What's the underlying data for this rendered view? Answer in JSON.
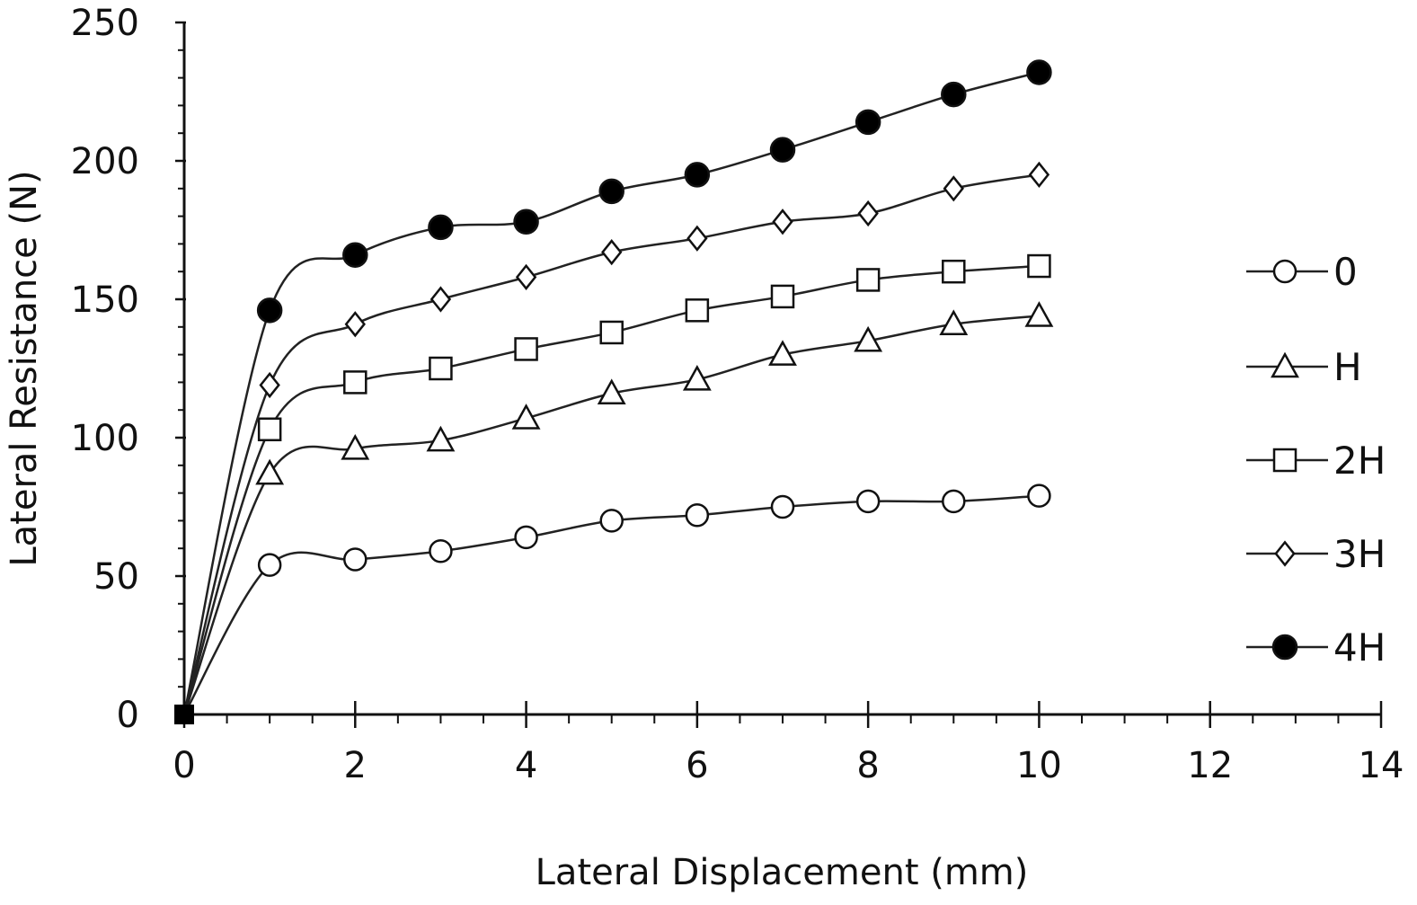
{
  "chart_data": {
    "type": "line",
    "title": "",
    "xlabel": "Lateral Displacement (mm)",
    "ylabel": "Lateral Resistance (N)",
    "xlim": [
      0,
      14
    ],
    "ylim": [
      0,
      250
    ],
    "x_ticks": [
      0,
      2,
      4,
      6,
      8,
      10,
      12,
      14
    ],
    "y_ticks": [
      0,
      50,
      100,
      150,
      200,
      250
    ],
    "x_minor_step": 0.5,
    "y_minor_step": 10,
    "grid": false,
    "legend_position": "right",
    "x": [
      0,
      1,
      2,
      3,
      4,
      5,
      6,
      7,
      8,
      9,
      10
    ],
    "series": [
      {
        "name": "0",
        "marker": "circle-open",
        "values": [
          0,
          54,
          56,
          59,
          64,
          70,
          72,
          75,
          77,
          77,
          79
        ]
      },
      {
        "name": "H",
        "marker": "triangle-open",
        "values": [
          0,
          87,
          96,
          99,
          107,
          116,
          121,
          130,
          135,
          141,
          144
        ]
      },
      {
        "name": "2H",
        "marker": "square-open",
        "values": [
          0,
          103,
          120,
          125,
          132,
          138,
          146,
          151,
          157,
          160,
          162
        ]
      },
      {
        "name": "3H",
        "marker": "diamond-open",
        "values": [
          0,
          119,
          141,
          150,
          158,
          167,
          172,
          178,
          181,
          190,
          195
        ]
      },
      {
        "name": "4H",
        "marker": "circle-filled",
        "values": [
          0,
          146,
          166,
          176,
          178,
          189,
          195,
          204,
          214,
          224,
          232
        ]
      }
    ]
  }
}
